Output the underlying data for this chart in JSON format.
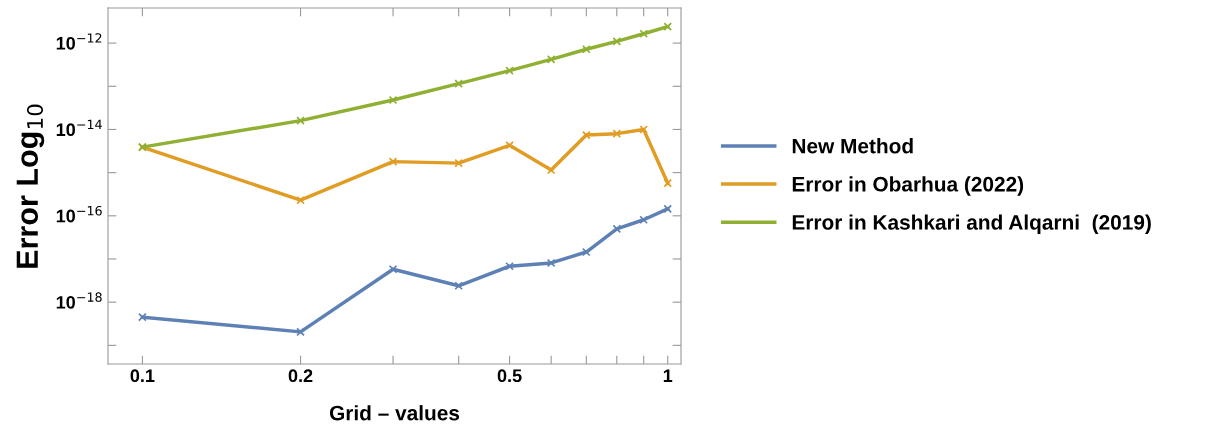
{
  "chart_data": {
    "type": "line",
    "xlabel": "Grid – values",
    "ylabel": "Error Log$_{10}$",
    "x": [
      0.1,
      0.2,
      0.3,
      0.4,
      0.5,
      0.6,
      0.7,
      0.8,
      0.9,
      1.0
    ],
    "series": [
      {
        "name": "New Method",
        "color": "#5e81b5",
        "values": [
          4.5e-19,
          2.05e-19,
          5.8e-18,
          2.4e-18,
          6.8e-18,
          8.1e-18,
          1.45e-17,
          5e-17,
          8.1e-17,
          1.45e-16
        ]
      },
      {
        "name": "Error in Obarhua (2022)",
        "color": "#e19c24",
        "values": [
          3.9e-15,
          2.3e-16,
          1.8e-15,
          1.66e-15,
          4.3e-15,
          1.15e-15,
          7.4e-15,
          8e-15,
          1e-14,
          5.7e-16
        ]
      },
      {
        "name": "Error in Kashkari and Alqarni  (2019)",
        "color": "#8fb032",
        "values": [
          3.9e-15,
          1.6e-14,
          4.8e-14,
          1.15e-13,
          2.3e-13,
          4.2e-13,
          7.2e-13,
          1.1e-12,
          1.65e-12,
          2.4e-12
        ]
      }
    ],
    "log": "xy",
    "xlim": [
      0.086,
      1.06
    ],
    "ylim": [
      3.7e-20,
      6.5e-12
    ],
    "xticks": [
      {
        "value": 0.1,
        "label": "0.1"
      },
      {
        "value": 0.2,
        "label": "0.2"
      },
      {
        "value": 0.3,
        "label": null
      },
      {
        "value": 0.4,
        "label": null
      },
      {
        "value": 0.5,
        "label": "0.5"
      },
      {
        "value": 0.6,
        "label": null
      },
      {
        "value": 0.7,
        "label": null
      },
      {
        "value": 0.8,
        "label": null
      },
      {
        "value": 0.9,
        "label": null
      },
      {
        "value": 1,
        "label": "1"
      }
    ],
    "yticks": [
      {
        "value": 1e-19,
        "label": null
      },
      {
        "value": 1e-18,
        "label": "10$^{−18}$"
      },
      {
        "value": 1e-17,
        "label": null
      },
      {
        "value": 1e-16,
        "label": "10$^{−16}$"
      },
      {
        "value": 1e-15,
        "label": null
      },
      {
        "value": 1e-14,
        "label": "10$^{−14}$"
      },
      {
        "value": 1e-13,
        "label": null
      },
      {
        "value": 1e-12,
        "label": "10$^{−12}$"
      }
    ],
    "grid": false,
    "legend": "right",
    "marker": "cross",
    "line_style": "solid"
  }
}
